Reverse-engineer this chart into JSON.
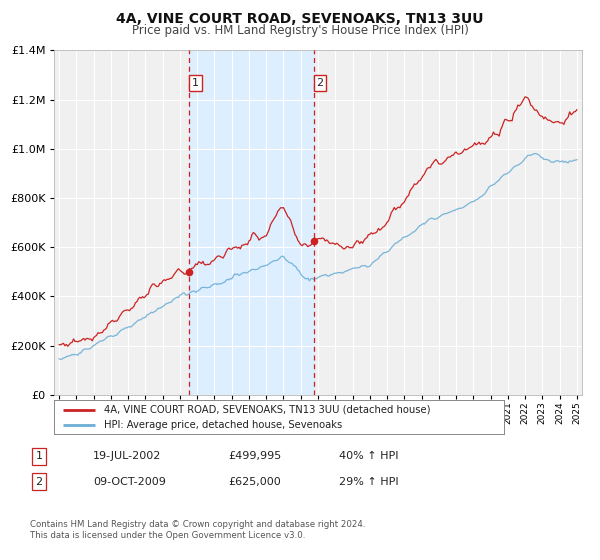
{
  "title": "4A, VINE COURT ROAD, SEVENOAKS, TN13 3UU",
  "subtitle": "Price paid vs. HM Land Registry's House Price Index (HPI)",
  "legend_line1": "4A, VINE COURT ROAD, SEVENOAKS, TN13 3UU (detached house)",
  "legend_line2": "HPI: Average price, detached house, Sevenoaks",
  "annotation1_date": "19-JUL-2002",
  "annotation1_price": "£499,995",
  "annotation1_hpi": "40% ↑ HPI",
  "annotation2_date": "09-OCT-2009",
  "annotation2_price": "£625,000",
  "annotation2_hpi": "29% ↑ HPI",
  "footnote1": "Contains HM Land Registry data © Crown copyright and database right 2024.",
  "footnote2": "This data is licensed under the Open Government Licence v3.0.",
  "sale1_date_num": 2002.54,
  "sale1_price": 499995,
  "sale2_date_num": 2009.77,
  "sale2_price": 625000,
  "vline1_year": 2002.54,
  "vline2_year": 2009.77,
  "shade_start": 2002.54,
  "shade_end": 2009.77,
  "hpi_color": "#6baed6",
  "price_color": "#cc2222",
  "shade_color": "#ddeeff",
  "vline_color": "#cc2222",
  "ylim_max": 1400000,
  "ylim_min": 0,
  "background_color": "#ffffff",
  "plot_bg_color": "#f0f0f0",
  "grid_color": "#ffffff",
  "xmin": 1994.7,
  "xmax": 2025.3
}
